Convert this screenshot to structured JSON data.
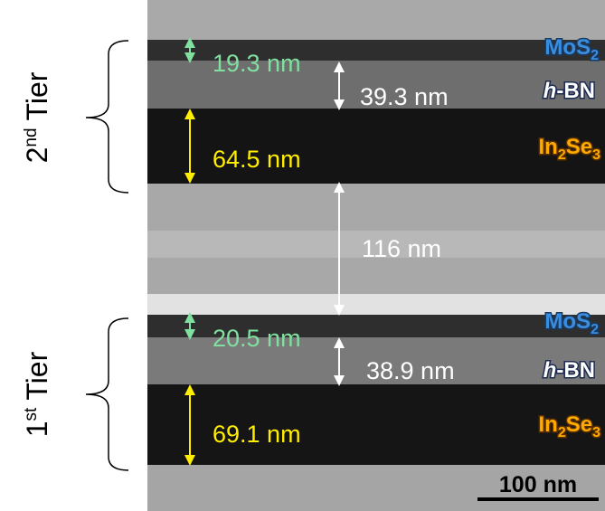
{
  "tiers": [
    {
      "ordinal": "2",
      "suffix": "nd",
      "word": "Tier"
    },
    {
      "ordinal": "1",
      "suffix": "st",
      "word": "Tier"
    }
  ],
  "layers": {
    "mos2": {
      "base": "MoS",
      "sub": "2"
    },
    "hbn": {
      "italic": "h",
      "rest": "-BN"
    },
    "in2se3": {
      "a": "In",
      "a_sub": "2",
      "b": "Se",
      "b_sub": "3"
    }
  },
  "measurements": {
    "tier2_mos2": "19.3 nm",
    "tier2_hbn": "39.3 nm",
    "tier2_in2se3": "64.5 nm",
    "spacer": "116 nm",
    "tier1_mos2": "20.5 nm",
    "tier1_hbn": "38.9 nm",
    "tier1_in2se3": "69.1 nm"
  },
  "scale_bar": "100 nm"
}
